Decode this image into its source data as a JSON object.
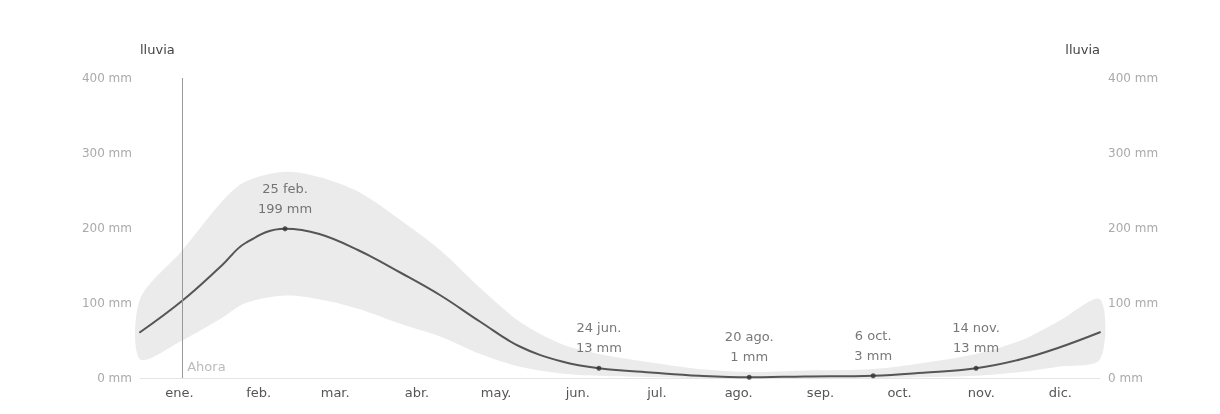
{
  "chart_data": {
    "type": "line",
    "ylabel": "lluvia",
    "y2label": "lluvia",
    "x": [
      "--01-01",
      "--01-17",
      "--02-01",
      "--02-10",
      "--02-25",
      "--03-10",
      "--03-25",
      "--04-10",
      "--04-25",
      "--05-10",
      "--05-25",
      "--06-10",
      "--06-24",
      "--07-15",
      "--08-01",
      "--08-20",
      "--09-10",
      "--10-06",
      "--10-25",
      "--11-14",
      "--12-01",
      "--12-15",
      "--12-31"
    ],
    "series": [
      {
        "color": "#555555",
        "values": [
          61,
          103,
          150,
          180,
          199,
          192,
          170,
          140,
          110,
          75,
          42,
          22,
          13,
          7,
          3,
          1,
          2,
          3,
          7,
          13,
          25,
          40,
          61
        ],
        "lower": [
          25,
          50,
          80,
          100,
          110,
          105,
          92,
          72,
          55,
          32,
          15,
          6,
          3,
          1,
          0,
          0,
          0,
          0,
          1,
          3,
          8,
          15,
          25
        ],
        "upper": [
          105,
          170,
          235,
          262,
          275,
          268,
          248,
          210,
          170,
          120,
          75,
          45,
          32,
          20,
          12,
          8,
          10,
          12,
          20,
          32,
          50,
          75,
          105
        ]
      }
    ],
    "xlim": [
      "--01-01",
      "--12-31"
    ],
    "xticks": [
      {
        "value": "--01-16",
        "label": "ene."
      },
      {
        "value": "--02-15",
        "label": "feb."
      },
      {
        "value": "--03-16",
        "label": "mar."
      },
      {
        "value": "--04-16",
        "label": "abr."
      },
      {
        "value": "--05-16",
        "label": "may."
      },
      {
        "value": "--06-16",
        "label": "jun."
      },
      {
        "value": "--07-16",
        "label": "jul."
      },
      {
        "value": "--08-16",
        "label": "ago."
      },
      {
        "value": "--09-16",
        "label": "sep."
      },
      {
        "value": "--10-16",
        "label": "oct."
      },
      {
        "value": "--11-16",
        "label": "nov."
      },
      {
        "value": "--12-16",
        "label": "dic."
      }
    ],
    "ylim": [
      0,
      400
    ],
    "yticks": [
      {
        "value": 0,
        "label": "0 mm"
      },
      {
        "value": 100,
        "label": "100 mm"
      },
      {
        "value": 200,
        "label": "200 mm"
      },
      {
        "value": 300,
        "label": "300 mm"
      },
      {
        "value": 400,
        "label": "400 mm"
      }
    ],
    "y2lim": [
      0,
      400
    ],
    "y2ticks": [
      {
        "value": 0,
        "label": "0 mm"
      },
      {
        "value": 100,
        "label": "100 mm"
      },
      {
        "value": 200,
        "label": "200 mm"
      },
      {
        "value": 300,
        "label": "300 mm"
      },
      {
        "value": 400,
        "label": "400 mm"
      }
    ],
    "ref_lines": [
      {
        "axis": "x",
        "value": "--01-17",
        "label": "Ahora",
        "color": "#999999"
      }
    ],
    "annotations": [
      {
        "text": "25 feb.\n199 mm",
        "x": "--02-25",
        "y": 199
      },
      {
        "text": "24 jun.\n13 mm",
        "x": "--06-24",
        "y": 13
      },
      {
        "text": "20 ago.\n1 mm",
        "x": "--08-20",
        "y": 1
      },
      {
        "text": "6 oct.\n3 mm",
        "x": "--10-06",
        "y": 3
      },
      {
        "text": "14 nov.\n13 mm",
        "x": "--11-14",
        "y": 13
      }
    ],
    "grid": false,
    "line_style": "solid",
    "marker": "none"
  }
}
